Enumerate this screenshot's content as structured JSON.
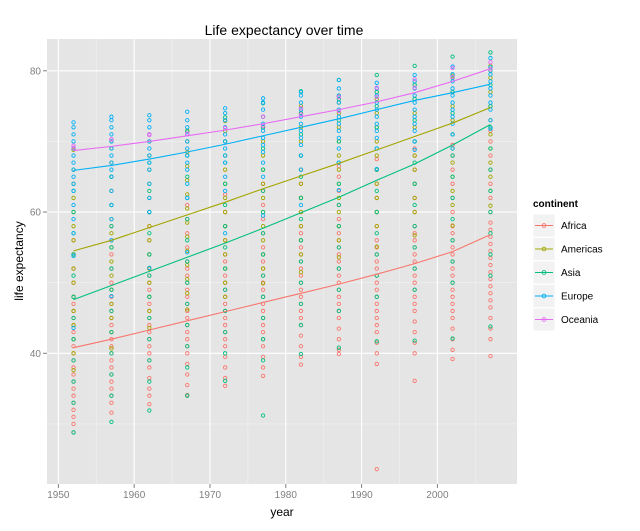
{
  "chart_data": {
    "type": "scatter",
    "title": "Life expectancy over time",
    "xlabel": "year",
    "ylabel": "life expectancy",
    "xlim": [
      1948.5,
      2010.5
    ],
    "ylim": [
      21.5,
      84.5
    ],
    "x_ticks": [
      1950,
      1960,
      1970,
      1980,
      1990,
      2000
    ],
    "y_ticks": [
      40,
      60,
      80
    ],
    "years": [
      1952,
      1957,
      1962,
      1967,
      1972,
      1977,
      1982,
      1987,
      1992,
      1997,
      2002,
      2007
    ],
    "grid": true,
    "legend_title": "continent",
    "legend_position": "right",
    "background": "#e5e5e5",
    "series": [
      {
        "name": "Africa",
        "color": "#f8766d",
        "trend": [
          40.8,
          42.0,
          43.3,
          44.6,
          45.9,
          47.2,
          48.5,
          49.8,
          51.2,
          52.7,
          54.4,
          56.8
        ],
        "points": [
          [
            28.8,
            30.0,
            31.0,
            32.0,
            33.0,
            34.0,
            35.0,
            36.0,
            37.0,
            38.0,
            39.0,
            40.0,
            41.0,
            42.0,
            43.0,
            44.0,
            45.0,
            46.0,
            47.0,
            48.0,
            50.0,
            52.0,
            54.0,
            56.0
          ],
          [
            31.6,
            33.0,
            34.0,
            35.0,
            36.0,
            37.0,
            38.0,
            39.0,
            40.0,
            41.0,
            42.0,
            43.0,
            44.0,
            45.0,
            46.0,
            47.0,
            48.0,
            49.0,
            50.0,
            52.0,
            54.0,
            56.0,
            58.0
          ],
          [
            32.8,
            34.0,
            35.0,
            36.5,
            38.0,
            39.0,
            40.0,
            41.0,
            42.0,
            43.0,
            44.0,
            45.0,
            46.0,
            47.0,
            48.0,
            49.0,
            50.0,
            51.0,
            52.0,
            54.0,
            56.0,
            58.0,
            60.0
          ],
          [
            34.1,
            35.5,
            37.0,
            38.5,
            40.0,
            41.0,
            42.0,
            43.0,
            44.0,
            45.0,
            46.0,
            47.0,
            48.0,
            49.0,
            50.0,
            51.0,
            52.0,
            53.0,
            55.0,
            57.0,
            59.0,
            61.0
          ],
          [
            35.4,
            36.5,
            38.0,
            39.5,
            41.0,
            42.0,
            43.0,
            44.0,
            45.0,
            46.0,
            47.0,
            48.0,
            49.0,
            50.0,
            51.0,
            52.0,
            53.0,
            54.0,
            56.0,
            58.0,
            60.0,
            62.5
          ],
          [
            36.8,
            38.0,
            39.5,
            41.0,
            42.0,
            43.0,
            44.0,
            45.0,
            46.0,
            47.0,
            48.0,
            49.0,
            50.0,
            51.0,
            52.0,
            53.0,
            54.0,
            55.0,
            57.0,
            59.0,
            61.0,
            63.0,
            64.0
          ],
          [
            38.4,
            39.5,
            41.0,
            42.5,
            44.0,
            45.0,
            46.0,
            47.0,
            48.0,
            49.0,
            50.0,
            51.0,
            52.0,
            53.0,
            54.0,
            55.0,
            56.0,
            57.0,
            58.0,
            60.0,
            62.0,
            64.0,
            66.0
          ],
          [
            39.9,
            40.5,
            42.0,
            43.5,
            45.0,
            46.0,
            47.0,
            48.0,
            49.0,
            50.0,
            51.0,
            52.0,
            53.0,
            54.0,
            55.0,
            56.0,
            57.0,
            58.0,
            59.0,
            61.0,
            63.0,
            65.0,
            66.5
          ],
          [
            23.6,
            38.5,
            40.0,
            41.5,
            43.0,
            44.0,
            45.0,
            46.0,
            47.0,
            48.0,
            49.0,
            50.0,
            51.0,
            52.0,
            53.0,
            54.0,
            55.0,
            56.0,
            58.0,
            60.0,
            62.0,
            64.0,
            66.0,
            67.5
          ],
          [
            36.1,
            40.0,
            41.5,
            43.0,
            44.5,
            46.0,
            47.0,
            48.0,
            49.0,
            50.0,
            51.0,
            52.0,
            53.0,
            54.0,
            55.0,
            56.0,
            57.0,
            58.0,
            60.0,
            62.0,
            64.0,
            66.0,
            68.0,
            69.0
          ],
          [
            39.2,
            40.5,
            42.0,
            43.5,
            45.0,
            46.0,
            47.0,
            48.0,
            49.0,
            50.0,
            51.0,
            52.0,
            53.0,
            54.0,
            55.0,
            56.0,
            57.0,
            58.0,
            60.0,
            62.0,
            64.0,
            66.0,
            68.0,
            69.5
          ],
          [
            39.6,
            42.0,
            43.5,
            45.0,
            46.5,
            47.5,
            48.5,
            49.5,
            50.5,
            51.5,
            52.5,
            53.5,
            54.5,
            55.5,
            56.5,
            57.5,
            58.5,
            60.0,
            62.0,
            64.0,
            66.0,
            68.0,
            70.0,
            71.5
          ]
        ]
      },
      {
        "name": "Americas",
        "color": "#a3a500",
        "trend": [
          54.5,
          56.0,
          57.8,
          59.6,
          61.4,
          63.3,
          65.1,
          66.9,
          68.8,
          70.7,
          72.6,
          74.8
        ],
        "points": [
          [
            37.6,
            40.0,
            42.0,
            44.0,
            46.0,
            48.0,
            50.0,
            52.0,
            54.0,
            56.0,
            58.0,
            60.0,
            62.0,
            64.0,
            66.0,
            68.8
          ],
          [
            40.7,
            43.0,
            45.0,
            47.0,
            49.0,
            51.0,
            53.0,
            55.0,
            57.0,
            59.0,
            61.0,
            63.0,
            65.0,
            67.0,
            69.0,
            70.0
          ],
          [
            43.6,
            46.0,
            48.0,
            50.0,
            52.0,
            54.0,
            56.0,
            58.0,
            60.0,
            62.0,
            64.0,
            66.0,
            68.0,
            70.0,
            71.0
          ],
          [
            46.2,
            48.5,
            50.5,
            52.5,
            54.5,
            56.5,
            58.5,
            60.5,
            62.5,
            64.5,
            66.5,
            68.5,
            70.0,
            71.5
          ],
          [
            48.0,
            50.0,
            52.0,
            54.0,
            56.0,
            58.0,
            60.0,
            62.0,
            64.0,
            66.0,
            68.0,
            70.0,
            71.5,
            72.9
          ],
          [
            49.9,
            52.0,
            54.0,
            56.0,
            58.0,
            60.0,
            62.0,
            64.0,
            66.0,
            68.0,
            70.0,
            72.0,
            73.5
          ],
          [
            51.5,
            54.0,
            56.0,
            58.0,
            60.0,
            62.0,
            64.0,
            66.0,
            68.0,
            70.0,
            72.0,
            74.0,
            75.0
          ],
          [
            53.6,
            56.0,
            58.0,
            60.0,
            62.0,
            64.0,
            66.0,
            68.0,
            70.0,
            72.0,
            74.0,
            75.5,
            76.4
          ],
          [
            55.1,
            58.0,
            60.0,
            62.0,
            64.0,
            66.0,
            68.0,
            70.0,
            72.0,
            74.0,
            76.0,
            77.0
          ],
          [
            56.7,
            60.0,
            62.0,
            64.0,
            66.0,
            68.0,
            70.0,
            72.0,
            74.0,
            76.0,
            78.0
          ],
          [
            58.1,
            61.0,
            63.0,
            65.0,
            67.0,
            69.0,
            71.0,
            73.0,
            75.0,
            77.0,
            79.3
          ],
          [
            60.9,
            63.0,
            65.0,
            67.0,
            69.0,
            71.0,
            73.0,
            75.0,
            77.0,
            79.0,
            80.7
          ]
        ]
      },
      {
        "name": "Asia",
        "color": "#00bf7d",
        "trend": [
          47.6,
          49.6,
          51.6,
          53.6,
          55.6,
          57.7,
          59.9,
          62.1,
          64.5,
          66.8,
          69.5,
          72.4
        ],
        "points": [
          [
            28.8,
            33.0,
            36.0,
            39.0,
            42.0,
            45.0,
            48.0,
            51.0,
            54.0,
            57.0,
            60.0,
            63.0
          ],
          [
            30.3,
            34.0,
            37.0,
            40.0,
            43.0,
            46.0,
            49.0,
            52.0,
            55.0,
            58.0,
            61.0,
            65.0
          ],
          [
            31.9,
            36.0,
            39.0,
            42.0,
            45.0,
            48.0,
            51.0,
            54.0,
            57.0,
            60.0,
            63.0,
            67.0
          ],
          [
            34.0,
            38.0,
            41.0,
            44.0,
            47.0,
            50.0,
            53.0,
            56.0,
            59.0,
            62.0,
            65.0,
            68.0,
            71.4
          ],
          [
            36.1,
            40.0,
            43.0,
            46.0,
            49.0,
            52.0,
            55.0,
            58.0,
            61.0,
            64.0,
            67.0,
            70.0,
            73.4
          ],
          [
            31.2,
            39.0,
            42.0,
            45.0,
            48.0,
            51.0,
            54.0,
            57.0,
            60.0,
            63.0,
            66.0,
            69.0,
            72.0,
            75.4
          ],
          [
            39.9,
            44.0,
            47.0,
            50.0,
            53.0,
            56.0,
            59.0,
            62.0,
            65.0,
            68.0,
            71.0,
            74.0,
            77.1
          ],
          [
            40.8,
            46.0,
            49.0,
            52.0,
            55.0,
            58.0,
            61.0,
            64.0,
            67.0,
            70.0,
            73.0,
            76.0,
            78.7
          ],
          [
            41.7,
            48.0,
            51.0,
            54.0,
            57.0,
            60.0,
            63.0,
            66.0,
            69.0,
            72.0,
            75.0,
            77.0,
            79.4
          ],
          [
            41.8,
            49.0,
            52.0,
            55.0,
            58.0,
            61.0,
            64.0,
            67.0,
            70.0,
            73.0,
            76.0,
            78.0,
            80.7
          ],
          [
            42.1,
            50.0,
            53.0,
            56.0,
            59.0,
            62.0,
            65.0,
            68.0,
            71.0,
            74.0,
            77.0,
            79.0,
            82.0
          ],
          [
            43.8,
            51.0,
            54.0,
            57.0,
            60.0,
            63.0,
            66.0,
            69.0,
            72.0,
            75.0,
            78.0,
            80.0,
            82.6
          ]
        ]
      },
      {
        "name": "Europe",
        "color": "#00b0f6",
        "trend": [
          65.9,
          66.6,
          67.5,
          68.5,
          69.6,
          70.8,
          72.0,
          73.2,
          74.5,
          75.8,
          76.9,
          78.1
        ],
        "points": [
          [
            43.6,
            53.8,
            57.0,
            59.0,
            61.0,
            63.0,
            64.0,
            65.0,
            66.0,
            67.0,
            68.0,
            69.0,
            70.0,
            71.0,
            72.0,
            72.7
          ],
          [
            48.1,
            56.0,
            59.0,
            61.0,
            63.0,
            65.0,
            66.0,
            67.0,
            68.0,
            69.0,
            70.0,
            71.0,
            72.0,
            73.0,
            73.5
          ],
          [
            52.1,
            60.0,
            62.0,
            64.0,
            66.0,
            67.0,
            68.0,
            69.0,
            70.0,
            71.0,
            72.0,
            73.0,
            73.7
          ],
          [
            54.3,
            62.0,
            64.0,
            66.0,
            67.0,
            68.0,
            69.0,
            70.0,
            71.0,
            72.0,
            73.0,
            74.2
          ],
          [
            57.0,
            63.0,
            65.0,
            67.0,
            68.0,
            69.0,
            70.0,
            71.0,
            72.0,
            73.0,
            74.0,
            74.7
          ],
          [
            59.5,
            65.0,
            67.0,
            68.5,
            69.5,
            70.5,
            71.5,
            72.5,
            73.5,
            74.5,
            75.5,
            76.1
          ],
          [
            61.0,
            66.0,
            68.0,
            69.5,
            70.5,
            71.5,
            72.5,
            73.5,
            74.5,
            75.5,
            76.5,
            77.0
          ],
          [
            63.1,
            67.0,
            69.0,
            70.5,
            71.5,
            72.5,
            73.5,
            74.5,
            75.5,
            76.5,
            77.5,
            78.7
          ],
          [
            66.1,
            69.0,
            70.5,
            71.5,
            72.5,
            73.5,
            74.5,
            75.5,
            76.5,
            77.5,
            78.3
          ],
          [
            68.8,
            70.0,
            71.5,
            72.5,
            73.5,
            74.5,
            75.5,
            76.5,
            77.5,
            78.5,
            79.4
          ],
          [
            69.0,
            71.0,
            72.5,
            73.5,
            74.5,
            75.5,
            76.5,
            77.5,
            78.5,
            79.5,
            80.6
          ],
          [
            71.8,
            73.0,
            74.5,
            75.5,
            76.5,
            77.5,
            78.5,
            79.5,
            80.5,
            81.8
          ]
        ]
      },
      {
        "name": "Oceania",
        "color": "#e76bf3",
        "trend": [
          68.7,
          69.3,
          70.0,
          70.8,
          71.6,
          72.5,
          73.5,
          74.5,
          75.6,
          76.9,
          78.5,
          80.3
        ],
        "points": [
          [
            69.1,
            69.4
          ],
          [
            70.3,
            70.3
          ],
          [
            71.0,
            70.9
          ],
          [
            71.1,
            71.1
          ],
          [
            71.9,
            71.9
          ],
          [
            72.2,
            73.5
          ],
          [
            73.8,
            74.7
          ],
          [
            74.3,
            76.3
          ],
          [
            76.3,
            77.6
          ],
          [
            77.6,
            78.8
          ],
          [
            79.1,
            80.4
          ],
          [
            80.2,
            81.2
          ]
        ]
      }
    ]
  }
}
